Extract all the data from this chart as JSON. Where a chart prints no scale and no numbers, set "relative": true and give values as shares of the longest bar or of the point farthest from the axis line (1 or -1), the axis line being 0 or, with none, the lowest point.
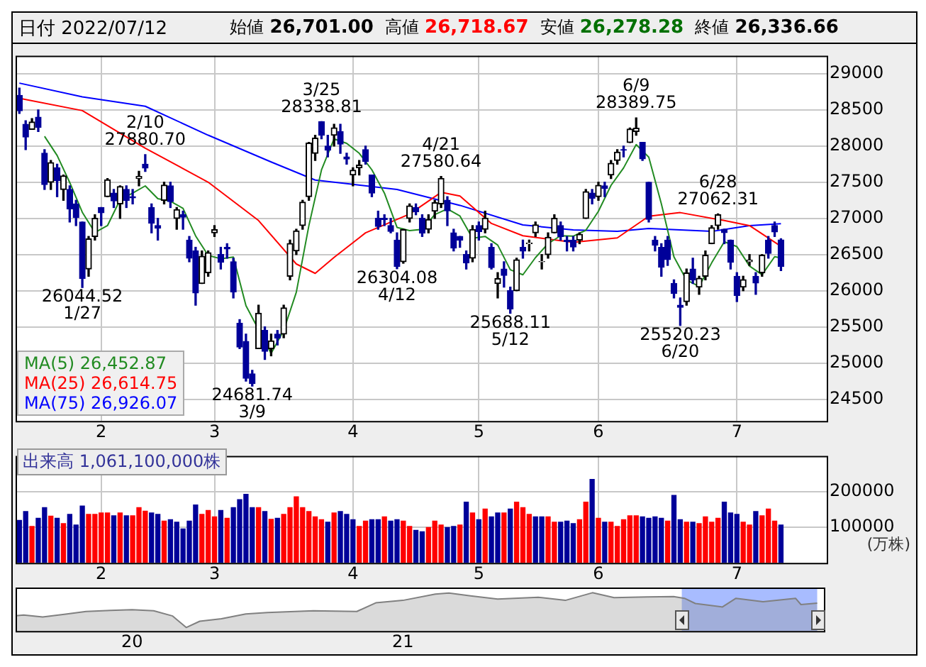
{
  "chart_data": [
    {
      "type": "candlestick",
      "title": "日付 2022/07/12",
      "colors": [
        "#000099",
        "#000099",
        "#000000",
        "#000099",
        "#000099",
        "#000000",
        "#000099",
        "#000000",
        "#000099",
        "#000099",
        "#000099",
        "#000000",
        "#000000",
        "#000099",
        "#000000",
        "#000099",
        "#000000",
        "#000099",
        "#000099",
        "#000000",
        "#000099",
        "#000099",
        "#000099",
        "#000000",
        "#000099",
        "#000000",
        "#000099",
        "#000099",
        "#000099",
        "#000000",
        "#000000",
        "#000000",
        "#000099",
        "#000099",
        "#000099",
        "#000099",
        "#000099",
        "#000099",
        "#000000",
        "#000099",
        "#000000",
        "#000099",
        "#000000",
        "#000000",
        "#000000",
        "#000000",
        "#000000",
        "#000000",
        "#000099",
        "#000099",
        "#000000",
        "#000099",
        "#000099",
        "#000000",
        "#000000",
        "#000099",
        "#000099",
        "#000099",
        "#000099",
        "#000099",
        "#000099",
        "#000000",
        "#000000",
        "#000099",
        "#000099",
        "#000000",
        "#000000",
        "#000000",
        "#000099",
        "#000099",
        "#000099",
        "#000099",
        "#000000",
        "#000099",
        "#000000",
        "#000099",
        "#000000",
        "#000099",
        "#000099",
        "#000000",
        "#000099",
        "#000000",
        "#000000",
        "#000000",
        "#000000",
        "#000000",
        "#000099",
        "#000099",
        "#000099",
        "#000000",
        "#000000",
        "#000099",
        "#000000",
        "#000099",
        "#000000",
        "#000000",
        "#000099",
        "#000000",
        "#000000",
        "#000099",
        "#000099",
        "#000099",
        "#000099",
        "#000099",
        "#000099",
        "#000099",
        "#000000",
        "#000099",
        "#000000",
        "#000000",
        "#000000",
        "#000000",
        "#000099",
        "#000099",
        "#000099",
        "#000000",
        "#000000",
        "#000099",
        "#000000",
        "#000099",
        "#000099",
        "#000099"
      ],
      "annotations": [
        "始値 26,701.00",
        "高値 26,718.67",
        "安値 26,278.28",
        "終値 26,336.66",
        {
          "text": "26044.52\n1/27",
          "y": 26044.52
        },
        {
          "text": "2/10\n27880.70",
          "y": 27880.7
        },
        {
          "text": "24681.74\n3/9",
          "y": 24681.74
        },
        {
          "text": "3/25\n28338.81",
          "y": 28338.81
        },
        {
          "text": "26304.08\n4/12",
          "y": 26304.08
        },
        {
          "text": "4/21\n27580.64",
          "y": 27580.64
        },
        {
          "text": "25688.11\n5/12",
          "y": 25688.11
        },
        {
          "text": "6/9\n28389.75",
          "y": 28389.75
        },
        {
          "text": "25520.23\n6/20",
          "y": 25520.23
        },
        {
          "text": "6/28\n27062.31",
          "y": 27062.31
        }
      ],
      "categories": [
        null,
        null,
        null,
        null,
        null,
        null,
        null,
        null,
        null,
        null,
        null,
        null,
        null,
        "2",
        null,
        null,
        null,
        null,
        null,
        null,
        null,
        null,
        null,
        null,
        null,
        null,
        null,
        null,
        null,
        null,
        null,
        "3",
        null,
        null,
        null,
        null,
        null,
        null,
        null,
        null,
        null,
        null,
        null,
        null,
        null,
        null,
        null,
        null,
        null,
        null,
        null,
        null,
        null,
        "4",
        null,
        null,
        null,
        null,
        null,
        null,
        null,
        null,
        null,
        null,
        null,
        null,
        null,
        null,
        null,
        null,
        null,
        null,
        null,
        "5",
        null,
        null,
        null,
        null,
        null,
        null,
        null,
        null,
        null,
        null,
        null,
        null,
        null,
        null,
        null,
        null,
        null,
        null,
        "6",
        null,
        null,
        null,
        null,
        null,
        null,
        null,
        null,
        null,
        null,
        null,
        null,
        null,
        null,
        null,
        null,
        null,
        null,
        null,
        null,
        null,
        "7",
        null,
        null,
        null,
        null,
        null,
        null,
        null
      ],
      "ohlc": [
        [
          28700,
          28800,
          28450,
          28489
        ],
        [
          28300,
          28350,
          27950,
          28124
        ],
        [
          28230,
          28380,
          28230,
          28333
        ],
        [
          28400,
          28500,
          28200,
          28257
        ],
        [
          27900,
          27950,
          27400,
          27467
        ],
        [
          27500,
          27800,
          27400,
          27772
        ],
        [
          27700,
          27750,
          27300,
          27522
        ],
        [
          27400,
          27600,
          27250,
          27588
        ],
        [
          27400,
          27450,
          26950,
          27131
        ],
        [
          27200,
          27250,
          26900,
          27011
        ],
        [
          26950,
          26950,
          26044.52,
          26170
        ],
        [
          26300,
          26750,
          26200,
          26717
        ],
        [
          26750,
          27050,
          26700,
          27001
        ],
        [
          27150,
          27150,
          26900,
          27078
        ],
        [
          27300,
          27550,
          27300,
          27533
        ],
        [
          27350,
          27400,
          27150,
          27241
        ],
        [
          27200,
          27450,
          27000,
          27439
        ],
        [
          27400,
          27450,
          27150,
          27248
        ],
        [
          27300,
          27400,
          27200,
          27284
        ],
        [
          27550,
          27650,
          27450,
          27579
        ],
        [
          27750,
          27880.7,
          27650,
          27696
        ],
        [
          27150,
          27200,
          26800,
          26934
        ],
        [
          26900,
          27000,
          26700,
          26865
        ],
        [
          27250,
          27500,
          27200,
          27460
        ],
        [
          27450,
          27500,
          27150,
          27232
        ],
        [
          27000,
          27150,
          26850,
          27122
        ],
        [
          27050,
          27100,
          26850,
          27017
        ],
        [
          26700,
          26750,
          26400,
          26449
        ],
        [
          26550,
          26600,
          25800,
          25970
        ],
        [
          26100,
          26550,
          26100,
          26476
        ],
        [
          26250,
          26550,
          26200,
          26526
        ],
        [
          26800,
          26900,
          26750,
          26844
        ],
        [
          26500,
          26600,
          26300,
          26393
        ],
        [
          26600,
          26650,
          26450,
          26577
        ],
        [
          26400,
          26450,
          25900,
          25985
        ],
        [
          25550,
          25600,
          25200,
          25221
        ],
        [
          25300,
          25400,
          24750,
          24790
        ],
        [
          24850,
          24900,
          24681.74,
          24717
        ],
        [
          25200,
          25800,
          25200,
          25690
        ],
        [
          25450,
          25500,
          25050,
          25162
        ],
        [
          25200,
          25400,
          25100,
          25307
        ],
        [
          25400,
          25450,
          25250,
          25346
        ],
        [
          25400,
          25800,
          25350,
          25762
        ],
        [
          26200,
          26700,
          26150,
          26652
        ],
        [
          26550,
          26850,
          26500,
          26827
        ],
        [
          26900,
          27250,
          26850,
          27224
        ],
        [
          27300,
          28050,
          27250,
          28040
        ],
        [
          27900,
          28150,
          27800,
          28110
        ],
        [
          28338,
          28338.81,
          28100,
          28149
        ],
        [
          28000,
          28150,
          27850,
          27943
        ],
        [
          28150,
          28300,
          28000,
          28252
        ],
        [
          28200,
          28300,
          27900,
          28027
        ],
        [
          27850,
          27900,
          27750,
          27821
        ],
        [
          27600,
          27700,
          27450,
          27665
        ],
        [
          27700,
          27800,
          27600,
          27736
        ],
        [
          27950,
          28000,
          27750,
          27787
        ],
        [
          27600,
          27600,
          27300,
          27350
        ],
        [
          27000,
          27100,
          26850,
          26888
        ],
        [
          27000,
          27050,
          26900,
          26985
        ],
        [
          26900,
          27000,
          26800,
          26821
        ],
        [
          26700,
          26800,
          26304.08,
          26334
        ],
        [
          26400,
          26850,
          26380,
          26843
        ],
        [
          27000,
          27200,
          26950,
          27172
        ],
        [
          27150,
          27200,
          27050,
          27093
        ],
        [
          27000,
          27050,
          26750,
          26799
        ],
        [
          26850,
          27050,
          26800,
          26985
        ],
        [
          27100,
          27250,
          27000,
          27217
        ],
        [
          27200,
          27580.64,
          27150,
          27553
        ],
        [
          27250,
          27300,
          26900,
          27105
        ],
        [
          26800,
          26850,
          26550,
          26590
        ],
        [
          26750,
          26750,
          26600,
          26700
        ],
        [
          26500,
          26550,
          26300,
          26386
        ],
        [
          26450,
          26900,
          26400,
          26847
        ],
        [
          26900,
          26950,
          26700,
          26818
        ],
        [
          26850,
          27100,
          26800,
          27003
        ],
        [
          26600,
          26650,
          26300,
          26319
        ],
        [
          26100,
          26250,
          25900,
          26167
        ],
        [
          26300,
          26400,
          26050,
          26213
        ],
        [
          26000,
          26050,
          25688.11,
          25748
        ],
        [
          26000,
          26450,
          26000,
          26427
        ],
        [
          26600,
          26700,
          26450,
          26547
        ],
        [
          26650,
          26700,
          26550,
          26659
        ],
        [
          26800,
          26950,
          26750,
          26911
        ],
        [
          26400,
          26500,
          26300,
          26402
        ],
        [
          26500,
          26800,
          26450,
          26739
        ],
        [
          26800,
          27050,
          26800,
          27001
        ],
        [
          26900,
          26950,
          26700,
          26748
        ],
        [
          26700,
          26750,
          26550,
          26677
        ],
        [
          26700,
          26750,
          26550,
          26604
        ],
        [
          26700,
          26800,
          26650,
          26781
        ],
        [
          27000,
          27400,
          27000,
          27369
        ],
        [
          27350,
          27400,
          27200,
          27279
        ],
        [
          27300,
          27500,
          27250,
          27457
        ],
        [
          27450,
          27500,
          27300,
          27413
        ],
        [
          27600,
          27800,
          27550,
          27761
        ],
        [
          27800,
          27950,
          27750,
          27915
        ],
        [
          27950,
          28000,
          27850,
          27943
        ],
        [
          28050,
          28250,
          28050,
          28234
        ],
        [
          28200,
          28389.75,
          28150,
          28246
        ],
        [
          28050,
          28050,
          27800,
          27824
        ],
        [
          27500,
          27500,
          26950,
          26987
        ],
        [
          26700,
          26750,
          26550,
          26629
        ],
        [
          26600,
          26650,
          26200,
          26326
        ],
        [
          26700,
          26750,
          26350,
          26431
        ],
        [
          26100,
          26150,
          25900,
          25963
        ],
        [
          25800,
          25900,
          25520.23,
          25771
        ],
        [
          25850,
          26300,
          25800,
          26246
        ],
        [
          26300,
          26450,
          26100,
          26149
        ],
        [
          26050,
          26200,
          25950,
          26171
        ],
        [
          26200,
          26550,
          26150,
          26491
        ],
        [
          26650,
          26900,
          26650,
          26871
        ],
        [
          26900,
          27062.31,
          26850,
          27049
        ],
        [
          26850,
          26850,
          26650,
          26804
        ],
        [
          26700,
          26700,
          26300,
          26393
        ],
        [
          26200,
          26250,
          25850,
          25935
        ],
        [
          26050,
          26200,
          26000,
          26153
        ],
        [
          26400,
          26500,
          26350,
          26423
        ],
        [
          26200,
          26250,
          25950,
          26107
        ],
        [
          26250,
          26500,
          26200,
          26490
        ],
        [
          26700,
          26750,
          26450,
          26517
        ],
        [
          26900,
          26950,
          26750,
          26812
        ],
        [
          26701,
          26718.67,
          26278.28,
          26336.66
        ]
      ],
      "series": [
        {
          "name": "MA(5) 26,452.87",
          "type": "line",
          "color": "#228b22",
          "values": [
            null,
            null,
            null,
            null,
            28134,
            null,
            27870,
            null,
            27496,
            null,
            27084,
            null,
            26806,
            null,
            26900,
            null,
            27258,
            null,
            27349,
            null,
            27449,
            null,
            27272,
            null,
            27237,
            null,
            27139,
            null,
            26758,
            null,
            26488,
            null,
            26442,
            null,
            26465,
            null,
            25793,
            null,
            null,
            null,
            25133,
            null,
            25453,
            null,
            25979,
            null,
            26901,
            null,
            27670,
            null,
            28099,
            null,
            28038,
            null,
            27900,
            null,
            27672,
            null,
            27349,
            null,
            26876,
            null,
            26831,
            null,
            26848,
            null,
            27053,
            null,
            27132,
            null,
            27033,
            null,
            26726,
            null,
            26751,
            null,
            26631,
            null,
            26290,
            null,
            26220,
            null,
            26458,
            null,
            26652,
            null,
            26760,
            null,
            26754,
            null,
            26836,
            null,
            27098,
            null,
            27456,
            null,
            27698,
            null,
            28020,
            null,
            27847,
            null,
            27202,
            null,
            26467,
            null,
            26147,
            null,
            26060,
            null,
            26386,
            null,
            26677,
            null,
            26610,
            null,
            26342,
            null,
            26222,
            null,
            26470,
            26452.87
          ]
        },
        {
          "name": "MA(25) 26,614.75",
          "type": "line",
          "color": "#ff0000",
          "values": [
            28660,
            null,
            null,
            null,
            null,
            null,
            null,
            null,
            null,
            null,
            28490,
            null,
            null,
            null,
            null,
            null,
            null,
            null,
            null,
            null,
            27970,
            null,
            null,
            null,
            null,
            null,
            null,
            null,
            null,
            null,
            27500,
            null,
            null,
            null,
            null,
            null,
            null,
            null,
            26970,
            null,
            null,
            null,
            null,
            null,
            26370,
            null,
            null,
            26240,
            null,
            null,
            26460,
            null,
            null,
            null,
            null,
            26800,
            null,
            null,
            null,
            null,
            null,
            null,
            27060,
            null,
            null,
            null,
            null,
            27360,
            null,
            null,
            27310,
            null,
            null,
            null,
            null,
            26930,
            null,
            null,
            null,
            null,
            26760,
            null,
            null,
            null,
            null,
            null,
            null,
            null,
            26670,
            null,
            null,
            null,
            null,
            null,
            null,
            26730,
            null,
            null,
            null,
            null,
            27030,
            null,
            null,
            null,
            null,
            27080,
            null,
            null,
            null,
            null,
            null,
            null,
            26970,
            null,
            null,
            null,
            26900,
            null,
            null,
            null,
            null,
            26614.75
          ]
        },
        {
          "name": "MA(75) 26,926.07",
          "type": "line",
          "color": "#0000ff",
          "values": [
            28870,
            null,
            null,
            null,
            null,
            null,
            null,
            null,
            null,
            null,
            28680,
            null,
            null,
            null,
            null,
            null,
            null,
            null,
            null,
            null,
            28550,
            null,
            null,
            null,
            null,
            null,
            null,
            null,
            null,
            null,
            28150,
            null,
            null,
            null,
            null,
            null,
            null,
            null,
            null,
            null,
            27780,
            null,
            null,
            null,
            null,
            null,
            null,
            27530,
            null,
            null,
            null,
            null,
            27480,
            null,
            null,
            null,
            null,
            null,
            null,
            null,
            27400,
            null,
            null,
            null,
            null,
            null,
            null,
            null,
            null,
            null,
            27180,
            null,
            null,
            null,
            null,
            null,
            null,
            null,
            null,
            null,
            26910,
            null,
            null,
            null,
            null,
            null,
            null,
            null,
            26840,
            null,
            null,
            null,
            null,
            null,
            null,
            26820,
            null,
            null,
            null,
            null,
            26860,
            null,
            null,
            null,
            null,
            null,
            null,
            null,
            null,
            null,
            26820,
            null,
            null,
            null,
            null,
            null,
            26900,
            null,
            null,
            null,
            null,
            26926.07
          ]
        }
      ],
      "ylim": [
        24200,
        29250
      ],
      "yticks": [
        24500,
        25000,
        25500,
        26000,
        26500,
        27000,
        27500,
        28000,
        28500,
        29000
      ],
      "grid": true,
      "legend": "bottom left"
    },
    {
      "type": "bar",
      "title": "出来高 1,061,100,000株",
      "ylabel": "(万株)",
      "categories": [
        null,
        null,
        null,
        null,
        null,
        null,
        null,
        null,
        null,
        null,
        null,
        null,
        null,
        "2",
        null,
        null,
        null,
        null,
        null,
        null,
        null,
        null,
        null,
        null,
        null,
        null,
        null,
        null,
        null,
        null,
        null,
        "3",
        null,
        null,
        null,
        null,
        null,
        null,
        null,
        null,
        null,
        null,
        null,
        null,
        null,
        null,
        null,
        null,
        null,
        null,
        null,
        null,
        null,
        "4",
        null,
        null,
        null,
        null,
        null,
        null,
        null,
        null,
        null,
        null,
        null,
        null,
        null,
        null,
        null,
        null,
        null,
        null,
        null,
        "5",
        null,
        null,
        null,
        null,
        null,
        null,
        null,
        null,
        null,
        null,
        null,
        null,
        null,
        null,
        null,
        null,
        null,
        null,
        "6",
        null,
        null,
        null,
        null,
        null,
        null,
        null,
        null,
        null,
        null,
        null,
        null,
        null,
        null,
        null,
        null,
        null,
        null,
        null,
        null,
        null,
        "7",
        null,
        null,
        null,
        null,
        null,
        null,
        null
      ],
      "values": [
        119000,
        144000,
        102000,
        125000,
        155000,
        131000,
        125000,
        110000,
        136000,
        106000,
        159000,
        136000,
        136000,
        140000,
        140000,
        132000,
        140000,
        132000,
        132000,
        155000,
        145000,
        140000,
        136000,
        117000,
        121000,
        114000,
        95000,
        117000,
        162000,
        136000,
        147000,
        129000,
        147000,
        125000,
        155000,
        177000,
        192000,
        155000,
        155000,
        144000,
        122000,
        125000,
        136000,
        155000,
        185000,
        155000,
        144000,
        129000,
        121000,
        114000,
        140000,
        144000,
        136000,
        121000,
        102000,
        117000,
        121000,
        121000,
        129000,
        117000,
        121000,
        117000,
        102000,
        91000,
        87000,
        99000,
        117000,
        106000,
        99000,
        102000,
        106000,
        170000,
        140000,
        121000,
        151000,
        129000,
        140000,
        140000,
        151000,
        170000,
        155000,
        136000,
        129000,
        129000,
        129000,
        114000,
        114000,
        117000,
        110000,
        121000,
        170000,
        234000,
        125000,
        114000,
        114000,
        102000,
        121000,
        132000,
        132000,
        129000,
        125000,
        129000,
        125000,
        117000,
        189000,
        121000,
        114000,
        114000,
        110000,
        129000,
        114000,
        125000,
        170000,
        140000,
        136000,
        114000,
        106000,
        144000,
        132000,
        151000,
        117000,
        106110
      ],
      "colors": [
        "#000099",
        "#000099",
        "#ff0000",
        "#000099",
        "#000099",
        "#ff0000",
        "#000099",
        "#ff0000",
        "#000099",
        "#000099",
        "#000099",
        "#ff0000",
        "#ff0000",
        "#ff0000",
        "#ff0000",
        "#000099",
        "#ff0000",
        "#000099",
        "#ff0000",
        "#ff0000",
        "#ff0000",
        "#000099",
        "#000099",
        "#ff0000",
        "#000099",
        "#000099",
        "#000099",
        "#000099",
        "#000099",
        "#ff0000",
        "#ff0000",
        "#ff0000",
        "#000099",
        "#ff0000",
        "#000099",
        "#000099",
        "#000099",
        "#000099",
        "#ff0000",
        "#000099",
        "#ff0000",
        "#000099",
        "#ff0000",
        "#ff0000",
        "#ff0000",
        "#ff0000",
        "#ff0000",
        "#ff0000",
        "#ff0000",
        "#000099",
        "#ff0000",
        "#000099",
        "#000099",
        "#000099",
        "#ff0000",
        "#ff0000",
        "#000099",
        "#000099",
        "#ff0000",
        "#000099",
        "#000099",
        "#ff0000",
        "#ff0000",
        "#000099",
        "#000099",
        "#ff0000",
        "#ff0000",
        "#ff0000",
        "#000099",
        "#000099",
        "#ff0000",
        "#000099",
        "#ff0000",
        "#000099",
        "#ff0000",
        "#000099",
        "#000099",
        "#ff0000",
        "#000099",
        "#ff0000",
        "#ff0000",
        "#ff0000",
        "#000099",
        "#000099",
        "#ff0000",
        "#ff0000",
        "#000099",
        "#000099",
        "#000099",
        "#ff0000",
        "#ff0000",
        "#000099",
        "#ff0000",
        "#000099",
        "#ff0000",
        "#ff0000",
        "#ff0000",
        "#ff0000",
        "#ff0000",
        "#000099",
        "#000099",
        "#000099",
        "#000099",
        "#ff0000",
        "#000099",
        "#000099",
        "#ff0000",
        "#000099",
        "#ff0000",
        "#ff0000",
        "#ff0000",
        "#ff0000",
        "#000099",
        "#000099",
        "#000099",
        "#ff0000",
        "#ff0000",
        "#000099",
        "#ff0000",
        "#ff0000",
        "#ff0000",
        "#000099"
      ],
      "ylim": [
        0,
        300000
      ],
      "yticks": [
        100000,
        200000
      ],
      "grid": true
    },
    {
      "type": "area",
      "relative": true,
      "color": "#808080",
      "tick_labels": "x",
      "x": [
        2019.57,
        2019.6,
        2019.67,
        2019.75,
        2019.83,
        2019.92,
        2020.0,
        2020.08,
        2020.15,
        2020.2,
        2020.25,
        2020.33,
        2020.42,
        2020.5,
        2020.67,
        2020.83,
        2020.9,
        2021.0,
        2021.12,
        2021.17,
        2021.25,
        2021.35,
        2021.5,
        2021.6,
        2021.7,
        2021.78,
        2021.9,
        2022.0,
        2022.04,
        2022.08,
        2022.18,
        2022.23,
        2022.33,
        2022.45,
        2022.47,
        2022.53
      ],
      "values": [
        0.34,
        0.36,
        0.3,
        0.38,
        0.46,
        0.49,
        0.51,
        0.48,
        0.33,
        0,
        0.18,
        0.25,
        0.39,
        0.43,
        0.48,
        0.46,
        0.71,
        0.78,
        0.96,
        0.99,
        0.91,
        0.82,
        0.87,
        0.78,
        1,
        0.86,
        0.88,
        0.89,
        0.84,
        0.69,
        0.59,
        0.84,
        0.74,
        0.84,
        0.66,
        0.7
      ],
      "bands": [
        {
          "axis": "x",
          "from": 2022.03,
          "to": 2022.53,
          "color": "#a8bcff"
        }
      ],
      "xlim": [
        2019.57,
        2022.56
      ],
      "xticks": [
        {
          "value": 2020,
          "label": "20"
        },
        {
          "value": 2021,
          "label": "21"
        }
      ]
    }
  ]
}
